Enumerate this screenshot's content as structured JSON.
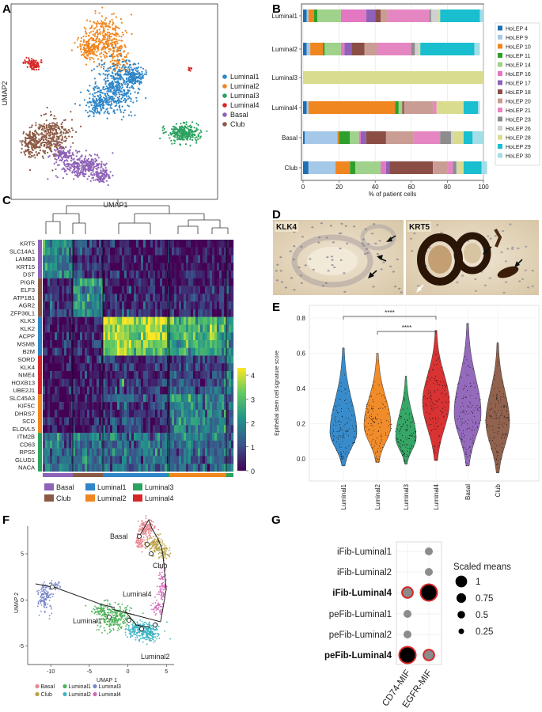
{
  "panels": {
    "A": "A",
    "B": "B",
    "C": "C",
    "D": "D",
    "E": "E",
    "F": "F",
    "G": "G"
  },
  "colors": {
    "Luminal1": "#2e86c8",
    "Luminal2": "#f0861f",
    "Luminal3": "#2ca25f",
    "Luminal4": "#d62728",
    "Basal": "#8e62b8",
    "Club": "#8b5a44"
  },
  "panelA": {
    "xlabel": "UMAP1",
    "ylabel": "UMAP2",
    "legend": [
      "Luminal1",
      "Luminal2",
      "Luminal3",
      "Luminal4",
      "Basal",
      "Club"
    ]
  },
  "panelB": {
    "xlabel": "% of patient cells",
    "xticks": [
      "0",
      "20",
      "40",
      "60",
      "80",
      "100"
    ],
    "legend_names": [
      "HoLEP 4",
      "HoLEP 9",
      "HoLEP 10",
      "HoLEP 11",
      "HoLEP 14",
      "HoLEP 16",
      "HoLEP 17",
      "HoLEP 18",
      "HoLEP 20",
      "HoLEP 21",
      "HoLEP 23",
      "HoLEP 26",
      "HoLEP 28",
      "HoLEP 29",
      "HoLEP 30"
    ],
    "legend_colors": [
      "#1f6fb4",
      "#a6c8e8",
      "#f0861f",
      "#2ca02c",
      "#9fd28b",
      "#e377c2",
      "#8e62b8",
      "#8b4e45",
      "#c99c94",
      "#e586c2",
      "#8c8c8c",
      "#d0d0d0",
      "#d9dc8e",
      "#19becf",
      "#a3dde6"
    ]
  },
  "panelC": {
    "genes": [
      "KRT5",
      "SLC14A1",
      "LAMB3",
      "KRT15",
      "DST",
      "PIGR",
      "ELF3",
      "ATP1B1",
      "AGR2",
      "ZFP36L1",
      "KLK3",
      "KLK2",
      "ACPP",
      "MSMB",
      "B2M",
      "SORD",
      "KLK4",
      "NME4",
      "HOXB13",
      "UBE2J1",
      "SLC45A3",
      "KIF5C",
      "DHRS7",
      "SCD",
      "ELOVL5",
      "ITM2B",
      "CD63",
      "RPS5",
      "GLUD1",
      "NACA"
    ],
    "colorbar_ticks": [
      "4",
      "3",
      "2",
      "1",
      "0"
    ],
    "legend": [
      "Basal",
      "Luminal1",
      "Luminal3",
      "Club",
      "Luminal2",
      "Luminal4"
    ]
  },
  "panelD": {
    "left_label": "KLK4",
    "right_label": "KRT5"
  },
  "panelE": {
    "ylabel": "Epithelial stem cell signature score",
    "yticks": [
      "0.0",
      "0.2",
      "0.4",
      "0.6",
      "0.8"
    ],
    "sig": [
      "****",
      "****"
    ]
  },
  "panelF": {
    "xlabel": "UMAP 1",
    "ylabel": "UMAP 2",
    "xticks": [
      "-10",
      "-5",
      "0",
      "5"
    ],
    "yticks": [
      "5",
      "0",
      "-5"
    ],
    "cluster_labels": [
      "Basal",
      "Club",
      "Luminal4",
      "Luminal1",
      "Luminal2"
    ],
    "legend": [
      "Basal",
      "Club",
      "Luminal1",
      "Luminal2",
      "Luminal3",
      "Luminal4"
    ],
    "legend_colors": [
      "#e8868f",
      "#b9a245",
      "#4fb35a",
      "#3fb5c4",
      "#7a88c8",
      "#d06ab8"
    ]
  },
  "panelG": {
    "legend_title": "Scaled means",
    "legend_values": [
      "1",
      "0.75",
      "0.5",
      "0.25"
    ]
  },
  "chart_data": [
    {
      "panel": "A",
      "type": "scatter",
      "title": "",
      "xlabel": "UMAP1",
      "ylabel": "UMAP2",
      "series": [
        "Luminal1",
        "Luminal2",
        "Luminal3",
        "Luminal4",
        "Basal",
        "Club"
      ]
    },
    {
      "panel": "B",
      "type": "bar",
      "stacked": true,
      "orientation": "horizontal",
      "categories": [
        "Luminal1",
        "Luminal2",
        "Luminal3",
        "Luminal4",
        "Basal",
        "Club"
      ],
      "xlabel": "% of patient cells",
      "xlim": [
        0,
        100
      ],
      "series": [
        {
          "name": "HoLEP 4",
          "values": [
            2,
            2,
            0,
            2,
            1,
            3
          ]
        },
        {
          "name": "HoLEP 9",
          "values": [
            1,
            2,
            0,
            1,
            18,
            15
          ]
        },
        {
          "name": "HoLEP 10",
          "values": [
            3,
            7,
            0,
            48,
            1,
            8
          ]
        },
        {
          "name": "HoLEP 11",
          "values": [
            2,
            1,
            0,
            2,
            6,
            3
          ]
        },
        {
          "name": "HoLEP 14",
          "values": [
            13,
            9,
            0,
            2,
            5,
            14
          ]
        },
        {
          "name": "HoLEP 16",
          "values": [
            14,
            2,
            0,
            0,
            1,
            3
          ]
        },
        {
          "name": "HoLEP 17",
          "values": [
            5,
            4,
            0,
            0,
            3,
            2
          ]
        },
        {
          "name": "HoLEP 18",
          "values": [
            3,
            7,
            0,
            1,
            11,
            24
          ]
        },
        {
          "name": "HoLEP 20",
          "values": [
            4,
            7,
            0,
            16,
            15,
            8
          ]
        },
        {
          "name": "HoLEP 21",
          "values": [
            23,
            19,
            0,
            2,
            15,
            3
          ]
        },
        {
          "name": "HoLEP 23",
          "values": [
            1,
            2,
            0,
            0,
            6,
            2
          ]
        },
        {
          "name": "HoLEP 26",
          "values": [
            4,
            2,
            0,
            0,
            1,
            1
          ]
        },
        {
          "name": "HoLEP 28",
          "values": [
            1,
            1,
            100,
            15,
            6,
            3
          ]
        },
        {
          "name": "HoLEP 29",
          "values": [
            22,
            30,
            0,
            8,
            5,
            10
          ]
        },
        {
          "name": "HoLEP 30",
          "values": [
            2,
            3,
            0,
            1,
            6,
            3
          ]
        }
      ]
    },
    {
      "panel": "C",
      "type": "heatmap",
      "title": "",
      "rows": [
        "KRT5",
        "SLC14A1",
        "LAMB3",
        "KRT15",
        "DST",
        "PIGR",
        "ELF3",
        "ATP1B1",
        "AGR2",
        "ZFP36L1",
        "KLK3",
        "KLK2",
        "ACPP",
        "MSMB",
        "B2M",
        "SORD",
        "KLK4",
        "NME4",
        "HOXB13",
        "UBE2J1",
        "SLC45A3",
        "KIF5C",
        "DHRS7",
        "SCD",
        "ELOVL5",
        "ITM2B",
        "CD63",
        "RPS5",
        "GLUD1",
        "NACA"
      ],
      "columns": [
        "Basal",
        "Club",
        "Luminal1",
        "Luminal3",
        "Luminal2",
        "Luminal4"
      ],
      "colorbar_range": [
        0,
        4.3
      ],
      "values": [
        [
          2.2,
          0.6,
          0.2,
          0.3,
          0.2,
          0.2
        ],
        [
          1.8,
          0.6,
          0.2,
          0.3,
          0.2,
          0.2
        ],
        [
          1.6,
          0.5,
          0.2,
          0.3,
          0.2,
          0.2
        ],
        [
          2.0,
          0.7,
          0.2,
          0.4,
          0.2,
          0.2
        ],
        [
          1.7,
          0.6,
          0.3,
          0.4,
          0.3,
          0.2
        ],
        [
          0.3,
          2.3,
          0.3,
          0.4,
          0.3,
          0.3
        ],
        [
          0.6,
          2.2,
          0.5,
          0.6,
          0.5,
          0.4
        ],
        [
          0.5,
          2.0,
          0.6,
          0.6,
          0.6,
          0.5
        ],
        [
          0.4,
          2.1,
          0.4,
          0.5,
          0.4,
          0.4
        ],
        [
          0.7,
          2.0,
          0.6,
          0.6,
          0.6,
          0.5
        ],
        [
          0.2,
          0.4,
          3.8,
          3.2,
          3.0,
          2.4
        ],
        [
          0.2,
          0.4,
          3.7,
          3.0,
          2.8,
          2.3
        ],
        [
          0.2,
          0.4,
          3.6,
          2.9,
          2.7,
          2.2
        ],
        [
          0.2,
          0.3,
          3.5,
          2.8,
          2.6,
          2.0
        ],
        [
          0.5,
          0.6,
          3.2,
          2.6,
          2.4,
          1.9
        ],
        [
          0.1,
          0.2,
          0.6,
          0.6,
          0.8,
          1.6
        ],
        [
          0.1,
          0.2,
          0.5,
          0.5,
          0.7,
          1.8
        ],
        [
          0.1,
          0.2,
          0.4,
          0.4,
          0.6,
          1.5
        ],
        [
          0.2,
          0.3,
          0.9,
          0.8,
          1.2,
          1.9
        ],
        [
          0.2,
          0.3,
          0.8,
          0.7,
          1.3,
          1.7
        ],
        [
          0.2,
          0.3,
          1.2,
          1.0,
          2.0,
          1.5
        ],
        [
          0.1,
          0.2,
          0.7,
          0.6,
          1.8,
          1.1
        ],
        [
          0.1,
          0.2,
          0.6,
          0.5,
          1.7,
          1.0
        ],
        [
          0.2,
          0.3,
          0.8,
          0.7,
          1.9,
          1.3
        ],
        [
          0.2,
          0.3,
          0.7,
          0.6,
          1.8,
          1.2
        ],
        [
          1.6,
          1.7,
          1.5,
          2.3,
          1.6,
          1.5
        ],
        [
          1.5,
          1.6,
          1.4,
          2.2,
          1.5,
          1.4
        ],
        [
          1.7,
          1.7,
          1.6,
          2.3,
          1.6,
          1.5
        ],
        [
          1.4,
          1.5,
          1.3,
          2.1,
          1.4,
          1.3
        ],
        [
          1.6,
          1.7,
          1.5,
          2.2,
          1.5,
          1.4
        ]
      ]
    },
    {
      "panel": "E",
      "type": "violin",
      "categories": [
        "Luminal1",
        "Luminal2",
        "Luminal3",
        "Luminal4",
        "Basal",
        "Club"
      ],
      "ylabel": "Epithelial stem cell signature score",
      "ylim": [
        -0.1,
        0.85
      ],
      "median": [
        0.15,
        0.19,
        0.12,
        0.32,
        0.26,
        0.21
      ],
      "min": [
        -0.04,
        -0.02,
        -0.03,
        -0.01,
        -0.04,
        -0.08
      ],
      "max": [
        0.63,
        0.6,
        0.47,
        0.73,
        0.77,
        0.66
      ],
      "significance": [
        {
          "from": "Luminal1",
          "to": "Luminal4",
          "label": "****"
        },
        {
          "from": "Luminal2",
          "to": "Luminal4",
          "label": "****"
        }
      ]
    },
    {
      "panel": "F",
      "type": "scatter",
      "title": "",
      "xlabel": "UMAP 1",
      "ylabel": "UMAP 2",
      "xlim": [
        -13,
        6
      ],
      "ylim": [
        -7,
        8
      ],
      "series": [
        "Basal",
        "Club",
        "Luminal1",
        "Luminal2",
        "Luminal3",
        "Luminal4"
      ]
    },
    {
      "panel": "G",
      "type": "scatter",
      "subtype": "dotplot",
      "rows": [
        "iFib-Luminal1",
        "iFib-Luminal2",
        "iFib-Luminal4",
        "peFib-Luminal1",
        "peFib-Luminal2",
        "peFib-Luminal4"
      ],
      "bold_rows": [
        "iFib-Luminal4",
        "peFib-Luminal4"
      ],
      "columns": [
        "CD74-MIF",
        "EGFR-MIF"
      ],
      "scaled_means": [
        [
          null,
          0.25
        ],
        [
          null,
          0.25
        ],
        [
          0.5,
          1.0
        ],
        [
          0.25,
          null
        ],
        [
          0.25,
          null
        ],
        [
          1.0,
          0.5
        ]
      ],
      "highlighted": [
        [
          false,
          false
        ],
        [
          false,
          false
        ],
        [
          true,
          true
        ],
        [
          false,
          false
        ],
        [
          false,
          false
        ],
        [
          true,
          true
        ]
      ],
      "size_legend": [
        1,
        0.75,
        0.5,
        0.25
      ]
    }
  ]
}
